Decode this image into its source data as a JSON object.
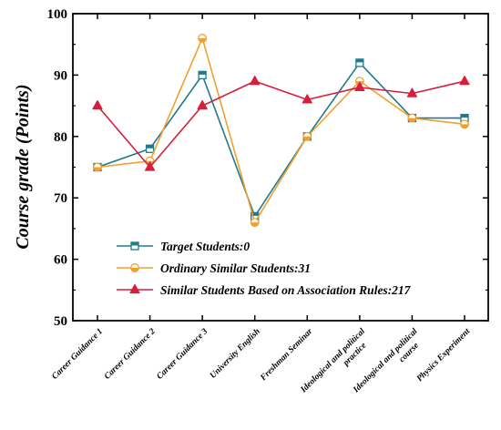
{
  "chart_data": {
    "type": "line",
    "ylabel": "Course grade (Points)",
    "xlabel": "",
    "ylim": [
      50,
      100
    ],
    "yticks": [
      50,
      60,
      70,
      80,
      90,
      100
    ],
    "grid": false,
    "legend_position": "bottom-center",
    "categories": [
      "Career Guidance 1",
      "Career Guidance 2",
      "Career Guidance 3",
      "University English",
      "Freshman Seminar",
      "Ideological and political practice",
      "Ideological and political course",
      "Physics Experiment"
    ],
    "category_lines": [
      [
        "Career Guidance 1"
      ],
      [
        "Career Guidance 2"
      ],
      [
        "Career Guidance 3"
      ],
      [
        "University English"
      ],
      [
        "Freshman Seminar"
      ],
      [
        "Ideological and political",
        "practice"
      ],
      [
        "Ideological and political",
        "course"
      ],
      [
        "Physics Experiment"
      ]
    ],
    "series": [
      {
        "name": "Target Students:0",
        "values": [
          75,
          78,
          90,
          67,
          80,
          92,
          83,
          83
        ],
        "color": "#1f7a8c",
        "marker": "square"
      },
      {
        "name": "Ordinary Similar Students:31",
        "values": [
          75,
          76,
          96,
          66,
          80,
          89,
          83,
          82
        ],
        "color": "#f0a030",
        "marker": "circle"
      },
      {
        "name": "Similar Students Based on Association Rules:217",
        "values": [
          85,
          75,
          85,
          89,
          86,
          88,
          87,
          89
        ],
        "color": "#d61f3c",
        "marker": "triangle"
      }
    ]
  }
}
